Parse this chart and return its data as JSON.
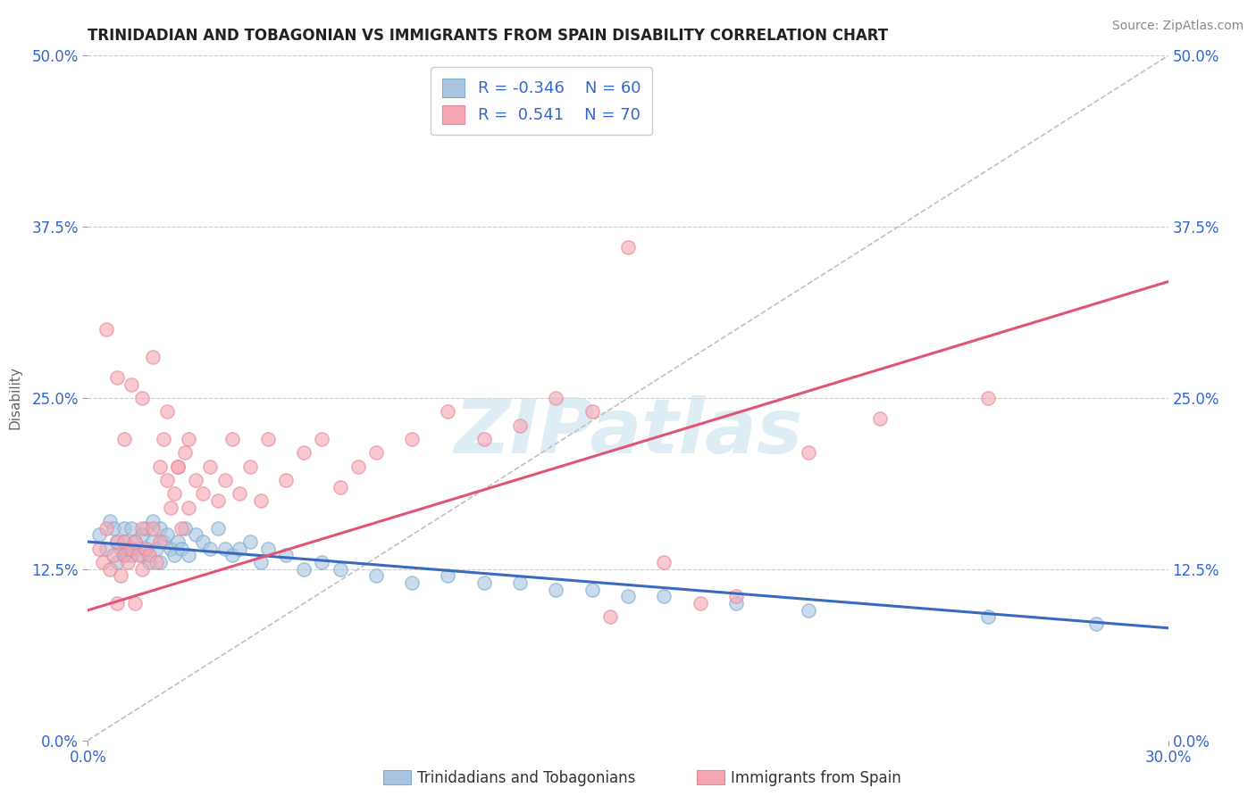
{
  "title": "TRINIDADIAN AND TOBAGONIAN VS IMMIGRANTS FROM SPAIN DISABILITY CORRELATION CHART",
  "source_text": "Source: ZipAtlas.com",
  "ylabel": "Disability",
  "xlim": [
    0.0,
    0.3
  ],
  "ylim": [
    0.0,
    0.5
  ],
  "ytick_labels": [
    "0.0%",
    "12.5%",
    "25.0%",
    "37.5%",
    "50.0%"
  ],
  "ytick_values": [
    0.0,
    0.125,
    0.25,
    0.375,
    0.5
  ],
  "xtick_labels": [
    "0.0%",
    "30.0%"
  ],
  "xtick_values": [
    0.0,
    0.3
  ],
  "legend_labels": [
    "Trinidadians and Tobagonians",
    "Immigrants from Spain"
  ],
  "blue_color": "#aac4e0",
  "pink_color": "#f4a7b2",
  "blue_edge_color": "#7aadd0",
  "pink_edge_color": "#e888a0",
  "blue_line_color": "#3a6abf",
  "pink_line_color": "#e05575",
  "ref_line_color": "#c0c0c0",
  "watermark": "ZIPatlas",
  "watermark_color": "#d0e4f0",
  "R_blue": -0.346,
  "N_blue": 60,
  "R_pink": 0.541,
  "N_pink": 70,
  "blue_line_x0": 0.0,
  "blue_line_y0": 0.145,
  "blue_line_x1": 0.3,
  "blue_line_y1": 0.082,
  "pink_line_x0": 0.0,
  "pink_line_y0": 0.095,
  "pink_line_x1": 0.3,
  "pink_line_y1": 0.335,
  "blue_scatter_x": [
    0.003,
    0.005,
    0.006,
    0.007,
    0.008,
    0.008,
    0.009,
    0.01,
    0.01,
    0.01,
    0.011,
    0.012,
    0.012,
    0.013,
    0.014,
    0.015,
    0.015,
    0.016,
    0.016,
    0.017,
    0.018,
    0.018,
    0.019,
    0.02,
    0.02,
    0.021,
    0.022,
    0.023,
    0.024,
    0.025,
    0.026,
    0.027,
    0.028,
    0.03,
    0.032,
    0.034,
    0.036,
    0.038,
    0.04,
    0.042,
    0.045,
    0.048,
    0.05,
    0.055,
    0.06,
    0.065,
    0.07,
    0.08,
    0.09,
    0.1,
    0.11,
    0.12,
    0.13,
    0.14,
    0.15,
    0.16,
    0.18,
    0.2,
    0.25,
    0.28
  ],
  "blue_scatter_y": [
    0.15,
    0.14,
    0.16,
    0.155,
    0.13,
    0.145,
    0.14,
    0.155,
    0.145,
    0.135,
    0.14,
    0.155,
    0.135,
    0.145,
    0.14,
    0.15,
    0.135,
    0.155,
    0.14,
    0.13,
    0.145,
    0.16,
    0.14,
    0.155,
    0.13,
    0.145,
    0.15,
    0.14,
    0.135,
    0.145,
    0.14,
    0.155,
    0.135,
    0.15,
    0.145,
    0.14,
    0.155,
    0.14,
    0.135,
    0.14,
    0.145,
    0.13,
    0.14,
    0.135,
    0.125,
    0.13,
    0.125,
    0.12,
    0.115,
    0.12,
    0.115,
    0.115,
    0.11,
    0.11,
    0.105,
    0.105,
    0.1,
    0.095,
    0.09,
    0.085
  ],
  "pink_scatter_x": [
    0.003,
    0.004,
    0.005,
    0.006,
    0.007,
    0.008,
    0.008,
    0.009,
    0.01,
    0.01,
    0.011,
    0.012,
    0.013,
    0.013,
    0.014,
    0.015,
    0.015,
    0.016,
    0.017,
    0.018,
    0.019,
    0.02,
    0.021,
    0.022,
    0.023,
    0.024,
    0.025,
    0.026,
    0.027,
    0.028,
    0.03,
    0.032,
    0.034,
    0.036,
    0.038,
    0.04,
    0.042,
    0.045,
    0.048,
    0.05,
    0.055,
    0.06,
    0.065,
    0.07,
    0.075,
    0.08,
    0.09,
    0.1,
    0.11,
    0.12,
    0.13,
    0.14,
    0.145,
    0.15,
    0.16,
    0.17,
    0.18,
    0.2,
    0.22,
    0.25,
    0.005,
    0.008,
    0.01,
    0.012,
    0.015,
    0.018,
    0.02,
    0.022,
    0.025,
    0.028
  ],
  "pink_scatter_y": [
    0.14,
    0.13,
    0.155,
    0.125,
    0.135,
    0.1,
    0.145,
    0.12,
    0.145,
    0.135,
    0.13,
    0.14,
    0.1,
    0.145,
    0.135,
    0.155,
    0.125,
    0.14,
    0.135,
    0.155,
    0.13,
    0.145,
    0.22,
    0.19,
    0.17,
    0.18,
    0.2,
    0.155,
    0.21,
    0.17,
    0.19,
    0.18,
    0.2,
    0.175,
    0.19,
    0.22,
    0.18,
    0.2,
    0.175,
    0.22,
    0.19,
    0.21,
    0.22,
    0.185,
    0.2,
    0.21,
    0.22,
    0.24,
    0.22,
    0.23,
    0.25,
    0.24,
    0.09,
    0.36,
    0.13,
    0.1,
    0.105,
    0.21,
    0.235,
    0.25,
    0.3,
    0.265,
    0.22,
    0.26,
    0.25,
    0.28,
    0.2,
    0.24,
    0.2,
    0.22
  ]
}
